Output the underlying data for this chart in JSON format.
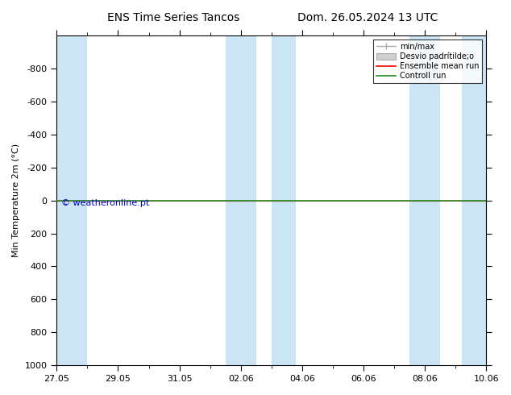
{
  "title_left": "ENS Time Series Tancos",
  "title_right": "Dom. 26.05.2024 13 UTC",
  "ylabel": "Min Temperature 2m (°C)",
  "ylim_bottom": 1000,
  "ylim_top": -1000,
  "yticks": [
    -800,
    -600,
    -400,
    -200,
    0,
    200,
    400,
    600,
    800,
    1000
  ],
  "ytick_labels": [
    "-800",
    "-600",
    "-400",
    "-200",
    "0",
    "200",
    "400",
    "600",
    "800",
    "1000"
  ],
  "xtick_labels": [
    "27.05",
    "29.05",
    "31.05",
    "02.06",
    "04.06",
    "06.06",
    "08.06",
    "10.06"
  ],
  "xtick_positions": [
    0,
    2,
    4,
    6,
    8,
    10,
    12,
    14
  ],
  "total_days": 14,
  "shaded_regions": [
    [
      0,
      1.0
    ],
    [
      5.5,
      6.5
    ],
    [
      7.0,
      7.8
    ],
    [
      11.5,
      12.5
    ],
    [
      13.2,
      14.0
    ]
  ],
  "shade_color": "#cce5f5",
  "control_run_y": 0,
  "ensemble_mean_y": 0,
  "watermark": "© weatheronline.pt",
  "watermark_color": "#0000cc",
  "background_color": "#ffffff",
  "plot_bg_color": "#ffffff",
  "border_color": "#000000",
  "legend_fontsize": 7,
  "axis_fontsize": 8,
  "title_fontsize": 10
}
